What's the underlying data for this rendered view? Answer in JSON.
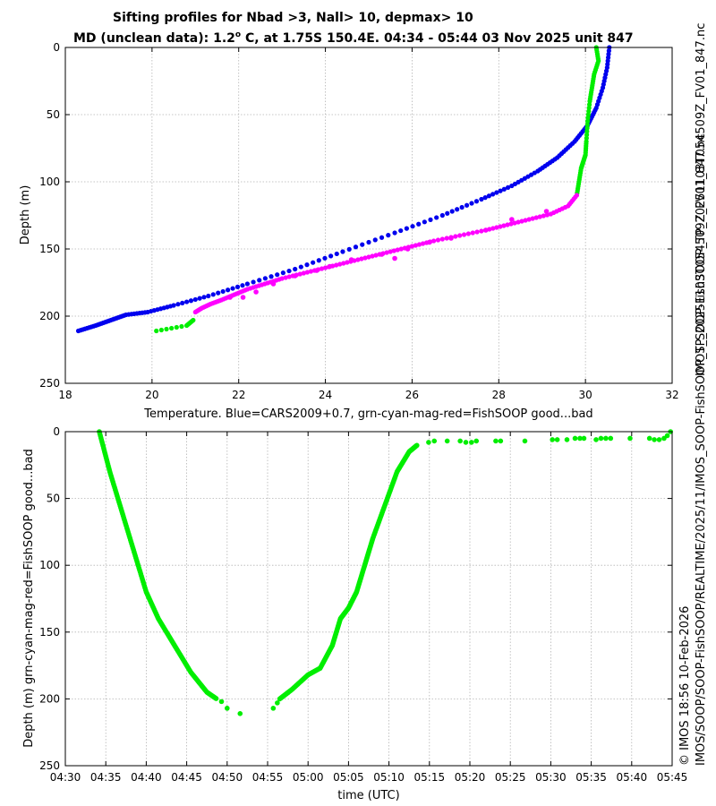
{
  "title": {
    "line1": "Sifting profiles for Nbad >3, Nall> 10, depmax> 10",
    "line2_a": "MD (unclean data): 1.2",
    "line2_sup": "o",
    "line2_b": " C, at 1.75S 150.4E. 04:34 - 05:44 03 Nov 2025 unit 847"
  },
  "side_text": {
    "filename": "IMOS_SOOP-FishSOOP_TP_20251103T054509Z_FV01_847.nc",
    "credit_line1": "© IMOS 18:56 10-Feb-2026",
    "credit_line2": "IMOS/SOOP/SOOP-FishSOOP/REALTIME/2025/11/IMOS_SOOP-FishSOOP_TP_20251103T054509Z_FV01_847.nc"
  },
  "colors": {
    "cars": "#0000ee",
    "good": "#00ee00",
    "mag": "#ff00ff",
    "grid": "#b4b4b4"
  },
  "chart_data": [
    {
      "type": "scatter",
      "name": "temperature-profile",
      "xlabel": "Temperature. Blue=CARS2009+0.7, grn-cyan-mag-red=FishSOOP good...bad",
      "ylabel": "Depth (m)",
      "xlim": [
        18,
        32
      ],
      "ylim": [
        250,
        0
      ],
      "xticks": [
        "18",
        "20",
        "22",
        "24",
        "26",
        "28",
        "30",
        "32"
      ],
      "yticks": [
        "0",
        "50",
        "100",
        "150",
        "200",
        "250"
      ],
      "grid": true,
      "series": [
        {
          "name": "CARS2009+0.7",
          "color": "blue",
          "temp": [
            30.55,
            30.5,
            30.4,
            30.25,
            30.05,
            29.75,
            29.35,
            28.9,
            28.3,
            27.6,
            26.7,
            25.6,
            24.4,
            23.3,
            22.2,
            21.3,
            20.5,
            19.9,
            19.4,
            19.05,
            18.7,
            18.3
          ],
          "depth": [
            0,
            15,
            30,
            45,
            58,
            70,
            82,
            92,
            103,
            113,
            125,
            138,
            152,
            165,
            176,
            185,
            192,
            197,
            199,
            203,
            207,
            211
          ]
        },
        {
          "name": "FishSOOP good",
          "color": "green",
          "temp": [
            30.25,
            30.3,
            30.2,
            30.15,
            30.1,
            30.05,
            30.02,
            30.0,
            29.95,
            29.9,
            29.85,
            29.8,
            20.95,
            20.8,
            20.1
          ],
          "depth": [
            0,
            10,
            20,
            30,
            40,
            55,
            70,
            80,
            85,
            90,
            100,
            110,
            203,
            207,
            211
          ]
        },
        {
          "name": "FishSOOP mag",
          "color": "magenta",
          "temp": [
            29.8,
            29.6,
            29.2,
            28.7,
            28.2,
            27.7,
            27.1,
            26.5,
            26.0,
            25.5,
            25.0,
            24.5,
            24.0,
            23.5,
            23.0,
            22.6,
            22.2,
            21.9,
            21.6,
            21.35,
            21.15,
            21.0
          ],
          "depth": [
            110,
            118,
            124,
            128,
            132,
            136,
            140,
            144,
            148,
            152,
            156,
            160,
            164,
            168,
            172,
            176,
            180,
            184,
            188,
            191,
            194,
            197
          ]
        },
        {
          "name": "FishSOOP mag scatter",
          "color": "magenta",
          "temp": [
            28.3,
            27.7,
            26.9,
            25.9,
            25.3,
            24.6,
            23.8,
            23.3,
            22.8,
            22.4,
            21.8,
            29.1,
            26.4,
            25.6,
            24.1,
            22.1
          ],
          "depth": [
            128,
            136,
            142,
            150,
            154,
            158,
            166,
            170,
            176,
            182,
            186,
            122,
            145,
            157,
            163,
            186
          ]
        }
      ]
    },
    {
      "type": "scatter",
      "name": "depth-time",
      "xlabel": "time (UTC)",
      "ylabel": "Depth (m) grn-cyan-mag-red=FishSOOP good...bad",
      "xlim": [
        270,
        345
      ],
      "ylim": [
        250,
        0
      ],
      "xticks": [
        "04:30",
        "04:35",
        "04:40",
        "04:45",
        "04:50",
        "04:55",
        "05:00",
        "05:05",
        "05:10",
        "05:15",
        "05:20",
        "05:25",
        "05:30",
        "05:35",
        "05:40",
        "05:45"
      ],
      "yticks": [
        "0",
        "50",
        "100",
        "150",
        "200",
        "250"
      ],
      "grid": true,
      "series": [
        {
          "name": "FishSOOP good (line)",
          "color": "green",
          "time": [
            274.2,
            275.5,
            277.0,
            278.5,
            280.0,
            281.5,
            283.5,
            285.5,
            287.5,
            288.7,
            296.5,
            298.0,
            300.0,
            301.5,
            303.0,
            304.0,
            305.0,
            306.0,
            307.0,
            308.0,
            309.5,
            311.0,
            312.5,
            313.5
          ],
          "depth": [
            0,
            30,
            60,
            90,
            120,
            140,
            160,
            180,
            195,
            200,
            200,
            193,
            182,
            177,
            160,
            140,
            132,
            120,
            100,
            80,
            55,
            30,
            15,
            10
          ]
        },
        {
          "name": "FishSOOP good (points)",
          "color": "green",
          "time": [
            289.3,
            290.0,
            291.6,
            295.7,
            296.2,
            314.9,
            315.6,
            317.2,
            318.8,
            319.5,
            320.2,
            320.8,
            323.2,
            323.8,
            326.8,
            330.2,
            330.8,
            332.0,
            333.0,
            333.6,
            334.1,
            335.6,
            336.2,
            336.8,
            337.4,
            339.8,
            342.2,
            342.8,
            343.4,
            344.0,
            344.4,
            344.8
          ],
          "depth": [
            202,
            207,
            211,
            207,
            203,
            8,
            7,
            7,
            7,
            8,
            8,
            7,
            7,
            7,
            7,
            6,
            6,
            6,
            5,
            5,
            5,
            6,
            5,
            5,
            5,
            5,
            5,
            6,
            6,
            5,
            3,
            0
          ]
        }
      ]
    }
  ]
}
